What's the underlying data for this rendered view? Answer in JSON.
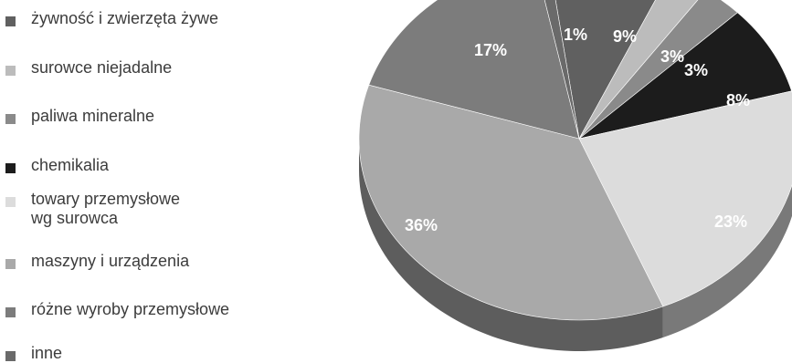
{
  "chart_data": {
    "type": "pie",
    "title": "",
    "legend_position": "left",
    "categories": [
      "żywność i zwierzęta żywe",
      "surowce niejadalne",
      "paliwa mineralne",
      "chemikalia",
      "towary przemysłowe\nwg surowca",
      "maszyny i urządzenia",
      "różne wyroby przemysłowe",
      "inne"
    ],
    "values": [
      9,
      3,
      3,
      8,
      23,
      36,
      17,
      1
    ],
    "labels": [
      "9%",
      "3%",
      "3%",
      "8%",
      "23%",
      "36%",
      "17%",
      "1%"
    ],
    "colors": [
      "#606060",
      "#bcbcbc",
      "#8a8a8a",
      "#1c1c1c",
      "#dcdcdc",
      "#a9a9a9",
      "#7c7c7c",
      "#6a6a6a"
    ],
    "label_colors": [
      "#ffffff",
      "#ffffff",
      "#ffffff",
      "#ffffff",
      "#ffffff",
      "#ffffff",
      "#ffffff",
      "#ffffff"
    ]
  }
}
